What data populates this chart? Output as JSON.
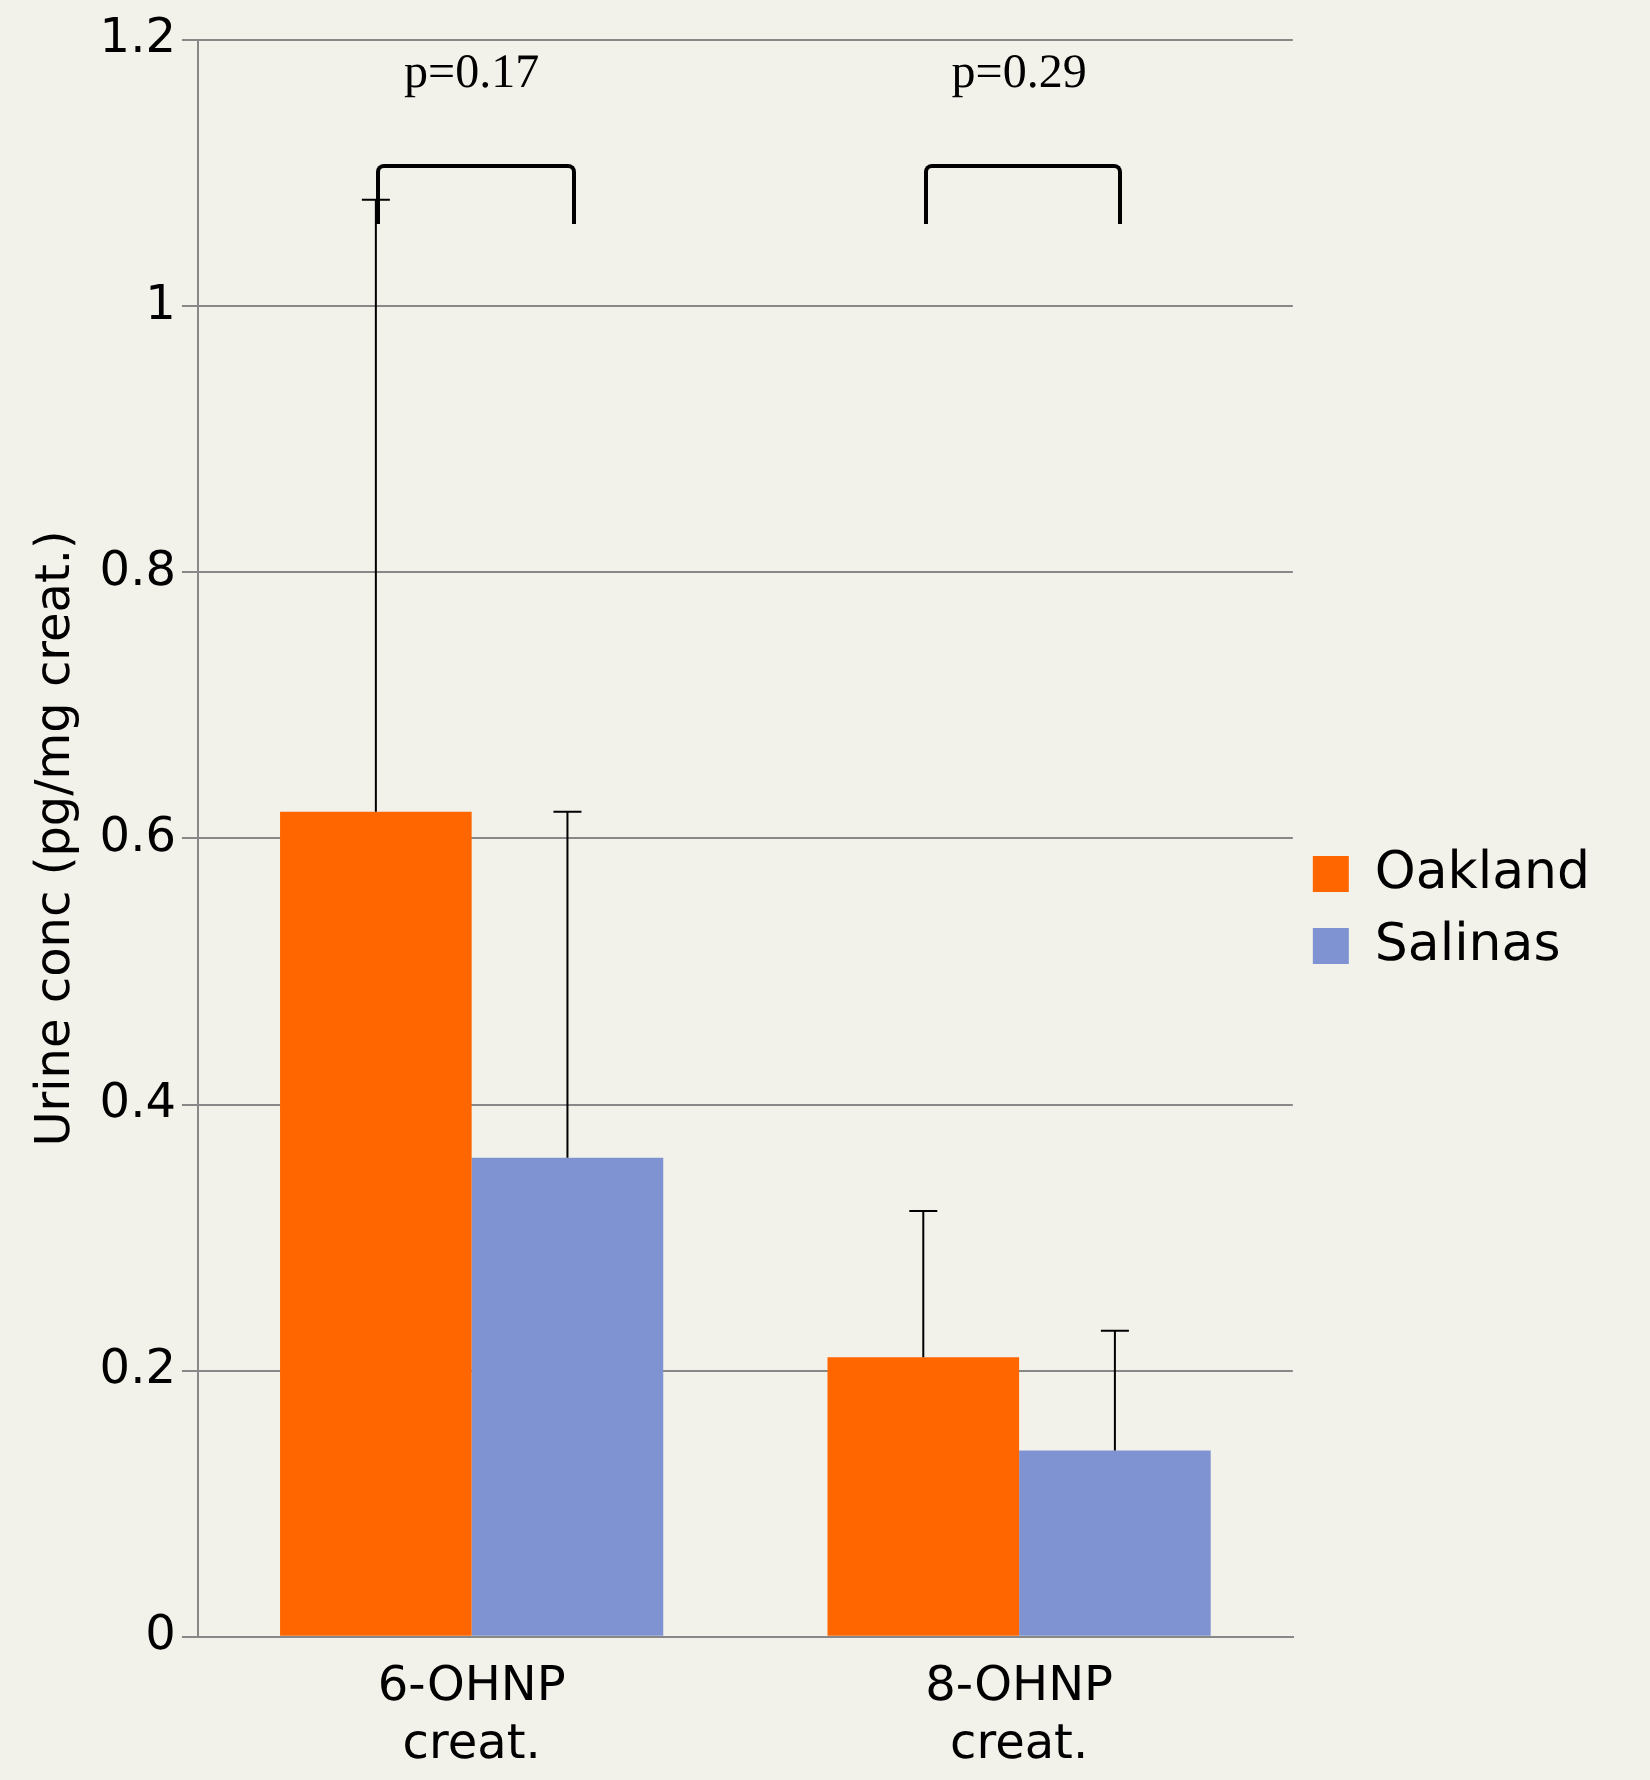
{
  "chart_data": {
    "type": "bar",
    "ylabel": "Urine conc (pg/mg creat.)",
    "categories": [
      "6-OHNP creat.",
      "8-OHNP creat."
    ],
    "series": [
      {
        "name": "Oakland",
        "color": "#ff6600",
        "values": [
          0.62,
          0.21
        ],
        "errors": [
          [
            0.62,
            1.08
          ],
          [
            0.21,
            0.32
          ]
        ]
      },
      {
        "name": "Salinas",
        "color": "#7f93d2",
        "values": [
          0.36,
          0.14
        ],
        "errors": [
          [
            0.36,
            0.62
          ],
          [
            0.14,
            0.23
          ]
        ]
      }
    ],
    "ylim": [
      0,
      1.2
    ],
    "yticks": [
      0,
      0.2,
      0.4,
      0.6,
      0.8,
      1,
      1.2
    ],
    "grid": "y",
    "legend": "right",
    "annotations": [
      "p=0.17",
      "p=0.29"
    ]
  }
}
